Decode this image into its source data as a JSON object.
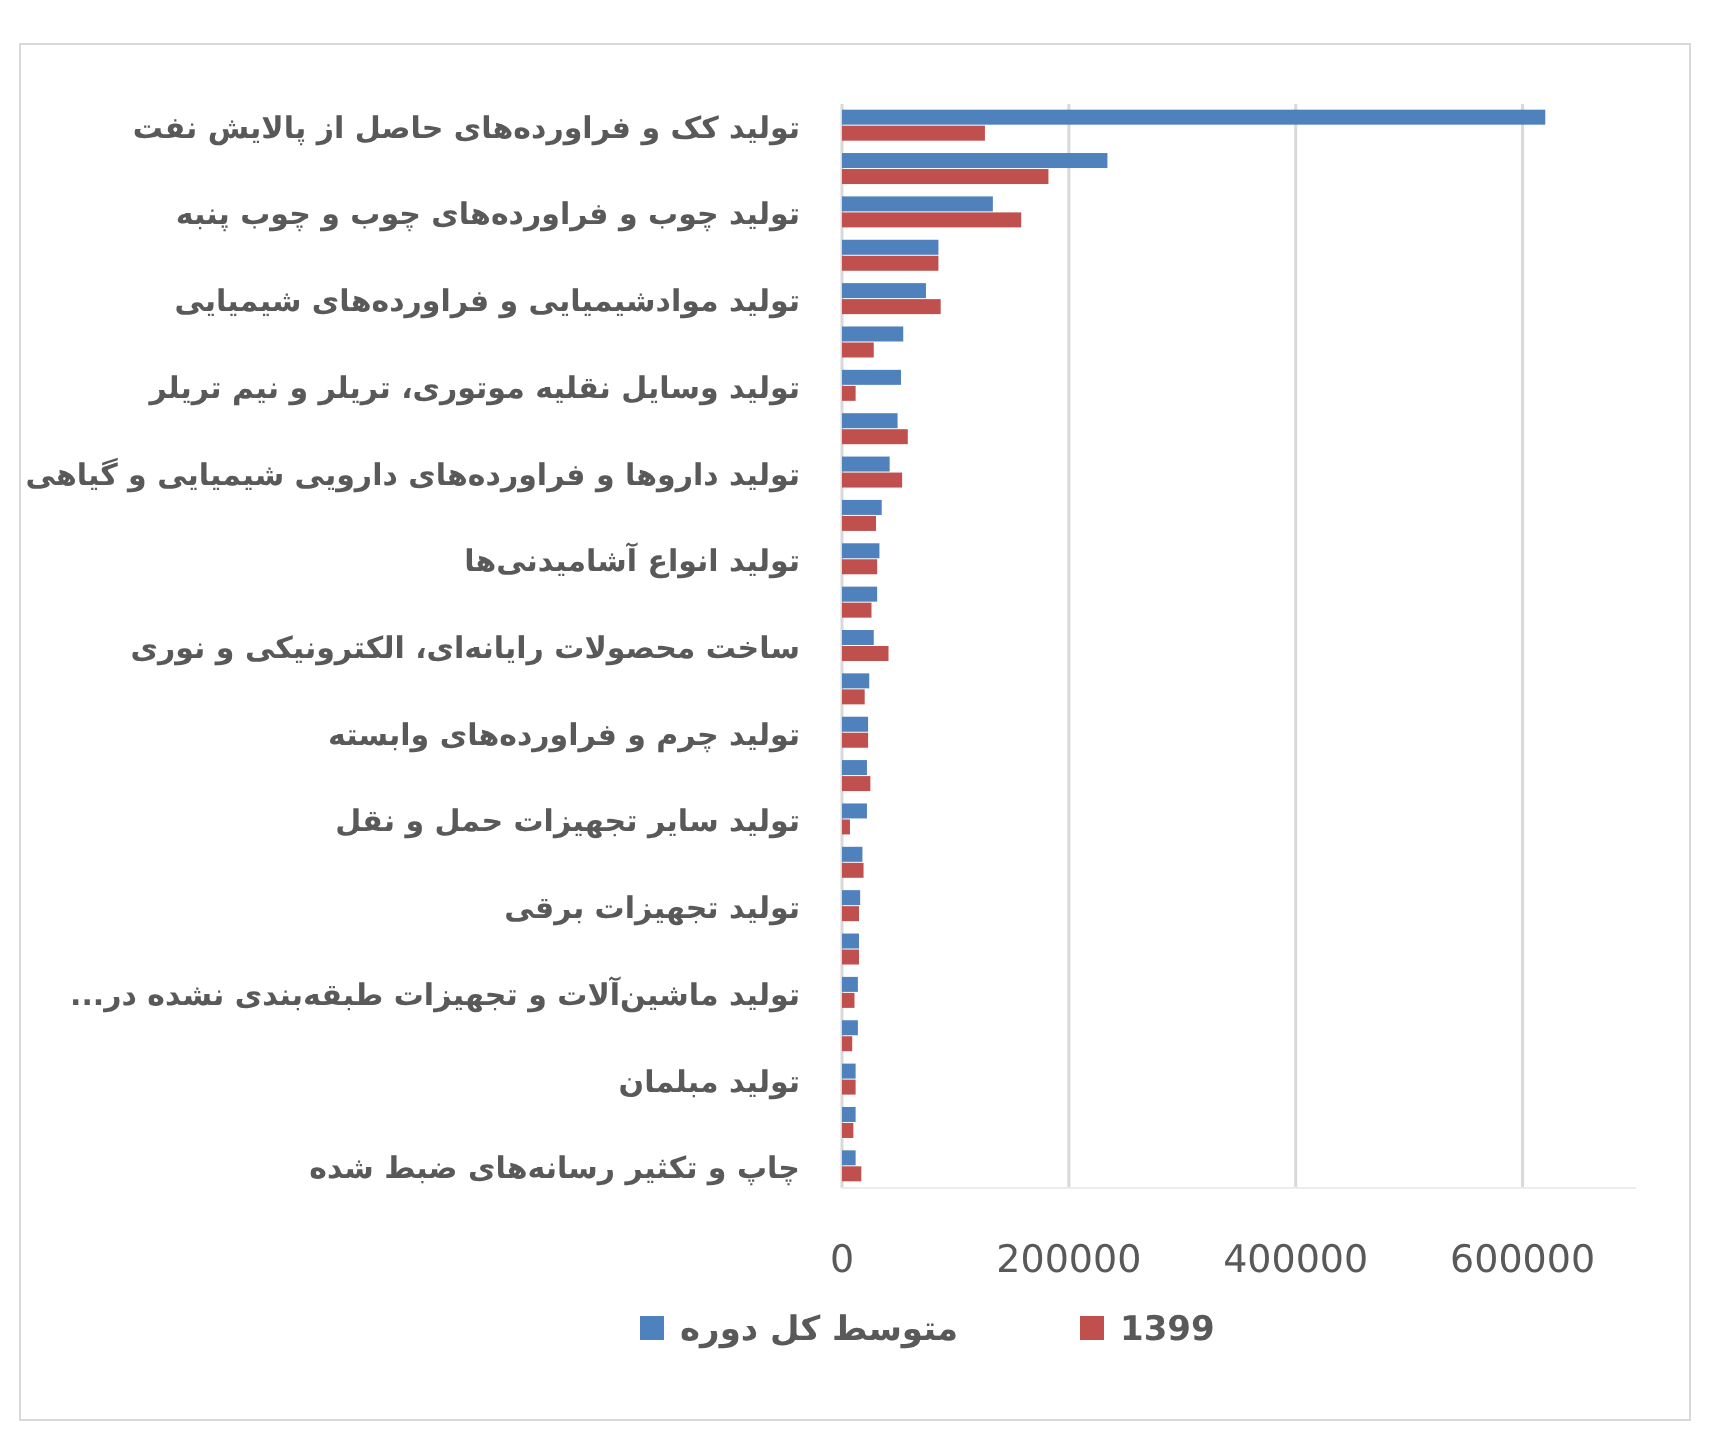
{
  "chart_data": {
    "type": "bar",
    "orientation": "horizontal",
    "categories": [
      "تولید کک و فراورده‌های حاصل از پالایش نفت",
      null,
      "تولید چوب و فراورده‌های چوب و چوب پنبه",
      null,
      "تولید موادشیمیایی و فراورده‌های شیمیایی",
      null,
      "تولید وسایل نقلیه موتوری، تریلر و نیم تریلر",
      null,
      "تولید داروها و فراورده‌های دارویی شیمیایی و گیاهی",
      null,
      "تولید انواع آشامیدنی‌ها",
      null,
      "ساخت محصولات رایانه‌ای، الکترونیکی و نوری",
      null,
      "تولید چرم و فراورده‌های وابسته",
      null,
      "تولید سایر تجهیزات حمل و نقل",
      null,
      "تولید تجهیزات برقی",
      null,
      "تولید ماشین‌آلات و تجهیزات طبقه‌بندی نشده در...",
      null,
      "تولید مبلمان",
      null,
      "چاپ و تکثیر رسانه‌های ضبط شده"
    ],
    "series": [
      {
        "name": "متوسط کل دوره",
        "color": "#4f81bd",
        "values": [
          620000,
          234000,
          133000,
          85000,
          74000,
          54000,
          52000,
          49000,
          42000,
          35000,
          33000,
          31000,
          28000,
          24000,
          23000,
          22000,
          22000,
          18000,
          16000,
          15000,
          14000,
          14000,
          12000,
          12000,
          12000
        ]
      },
      {
        "name": "1399",
        "color": "#c0504d",
        "values": [
          126000,
          182000,
          158000,
          85000,
          87000,
          28000,
          12000,
          58000,
          53000,
          30000,
          31000,
          26000,
          41000,
          20000,
          23000,
          25000,
          7000,
          19000,
          15000,
          15000,
          11000,
          9000,
          12000,
          10000,
          17000
        ]
      }
    ],
    "xlim": [
      0,
      700000
    ],
    "xticks": [
      0,
      200000,
      400000,
      600000
    ],
    "grid": "x",
    "legend": "bottom"
  }
}
